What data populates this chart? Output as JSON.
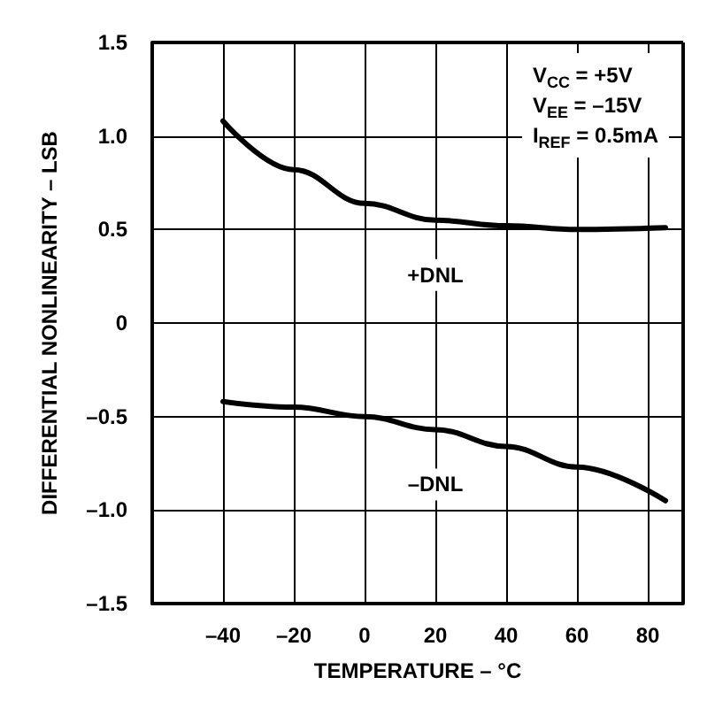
{
  "chart_data": {
    "type": "line",
    "xlabel": "TEMPERATURE – °C",
    "ylabel": "DIFFERENTIAL NONLINEARITY – LSB",
    "x": [
      -40,
      -20,
      0,
      20,
      40,
      60,
      85
    ],
    "series": [
      {
        "name": "+DNL",
        "color": "#000000",
        "values": [
          1.08,
          0.82,
          0.64,
          0.55,
          0.52,
          0.5,
          0.51
        ]
      },
      {
        "name": "–DNL",
        "color": "#000000",
        "values": [
          -0.42,
          -0.45,
          -0.5,
          -0.57,
          -0.66,
          -0.77,
          -0.95
        ]
      }
    ],
    "xlim": [
      -60,
      90
    ],
    "xticks": [
      {
        "value": -40,
        "label": "–40"
      },
      {
        "value": -20,
        "label": "–20"
      },
      {
        "value": 0,
        "label": "0"
      },
      {
        "value": 20,
        "label": "20"
      },
      {
        "value": 40,
        "label": "40"
      },
      {
        "value": 60,
        "label": "60"
      },
      {
        "value": 80,
        "label": "80"
      }
    ],
    "ylim": [
      -1.5,
      1.5
    ],
    "yticks": [
      {
        "value": -1.5,
        "label": "–1.5"
      },
      {
        "value": -1,
        "label": "–1.0"
      },
      {
        "value": -0.5,
        "label": "–0.5"
      },
      {
        "value": 0,
        "label": "0"
      },
      {
        "value": 0.5,
        "label": "0.5"
      },
      {
        "value": 1,
        "label": "1.0"
      },
      {
        "value": 1.5,
        "label": "1.5"
      }
    ],
    "annotations": [
      "V$_{CC}$ = +5V",
      "V$_{EE}$ = –15V",
      "I$_{REF}$ = 0.5mA"
    ],
    "grid": true,
    "legend": false,
    "marker": "none",
    "line_style": "solid"
  }
}
